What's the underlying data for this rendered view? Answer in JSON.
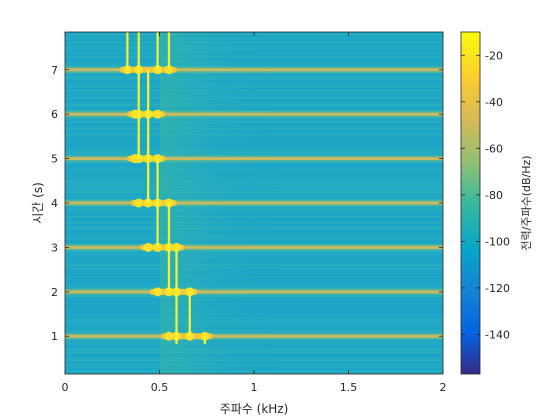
{
  "chart_data": {
    "type": "heatmap",
    "title": "",
    "xlabel": "주파수 (kHz)",
    "ylabel": "시간 (s)",
    "xlim": [
      0,
      2
    ],
    "ylim": [
      0.15,
      7.85
    ],
    "xticks": [
      "0",
      "0.5",
      "1",
      "1.5",
      "2"
    ],
    "yticks": [
      "1",
      "2",
      "3",
      "4",
      "5",
      "6",
      "7"
    ],
    "grid": false,
    "colorbar": {
      "label": "전력/주파수(dB/Hz)",
      "range": [
        -157,
        -10
      ],
      "ticks": [
        "-20",
        "-40",
        "-60",
        "-80",
        "-100",
        "-120",
        "-140"
      ],
      "colormap": "parula"
    },
    "background_level_db": -85,
    "band_level_db": -55,
    "bursts": [
      {
        "time": 1,
        "tones_khz": [
          0.55,
          0.59,
          0.66,
          0.74
        ]
      },
      {
        "time": 2,
        "tones_khz": [
          0.49,
          0.55,
          0.59,
          0.66
        ]
      },
      {
        "time": 3,
        "tones_khz": [
          0.44,
          0.49,
          0.55,
          0.59
        ]
      },
      {
        "time": 4,
        "tones_khz": [
          0.39,
          0.44,
          0.49,
          0.55
        ]
      },
      {
        "time": 5,
        "tones_khz": [
          0.37,
          0.39,
          0.44,
          0.49
        ]
      },
      {
        "time": 6,
        "tones_khz": [
          0.37,
          0.39,
          0.44,
          0.49
        ]
      },
      {
        "time": 7,
        "tones_khz": [
          0.33,
          0.39,
          0.49,
          0.55
        ]
      }
    ],
    "top_tones_khz": [
      0.33,
      0.55
    ]
  }
}
